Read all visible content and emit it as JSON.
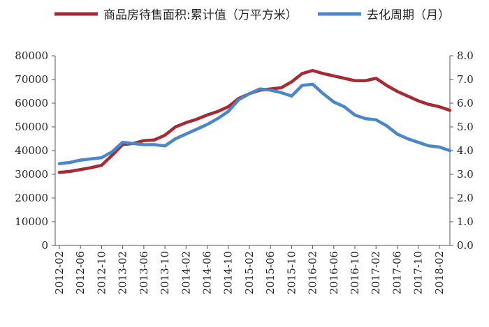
{
  "chart_data": {
    "type": "line",
    "title": "",
    "x": [
      "2012-02",
      "2012-04",
      "2012-06",
      "2012-08",
      "2012-10",
      "2012-12",
      "2013-02",
      "2013-04",
      "2013-06",
      "2013-08",
      "2013-10",
      "2013-12",
      "2014-02",
      "2014-04",
      "2014-06",
      "2014-08",
      "2014-10",
      "2014-12",
      "2015-02",
      "2015-04",
      "2015-06",
      "2015-08",
      "2015-10",
      "2015-12",
      "2016-02",
      "2016-04",
      "2016-06",
      "2016-08",
      "2016-10",
      "2016-12",
      "2017-02",
      "2017-04",
      "2017-06",
      "2017-08",
      "2017-10",
      "2017-12",
      "2018-02",
      "2018-04"
    ],
    "x_tick_labels": [
      "2012-02",
      "2012-06",
      "2012-10",
      "2013-02",
      "2013-06",
      "2013-10",
      "2014-02",
      "2014-06",
      "2014-10",
      "2015-02",
      "2015-06",
      "2015-10",
      "2016-02",
      "2016-06",
      "2016-10",
      "2017-02",
      "2017-06",
      "2017-10",
      "2018-02"
    ],
    "y_left": {
      "ylim": [
        0,
        80000
      ],
      "ticks": [
        "0",
        "10000",
        "20000",
        "30000",
        "40000",
        "50000",
        "60000",
        "70000",
        "80000"
      ]
    },
    "y_right": {
      "ylim": [
        0,
        8.0
      ],
      "ticks": [
        "0.0",
        "1.0",
        "2.0",
        "3.0",
        "4.0",
        "5.0",
        "6.0",
        "7.0",
        "8.0"
      ]
    },
    "series": [
      {
        "name": "商品房待售面积:累计值（万平方米）",
        "axis": "left",
        "color": "#a52a32",
        "values": [
          30800,
          31200,
          32000,
          32800,
          33800,
          38000,
          42600,
          43000,
          44200,
          44500,
          46500,
          50000,
          51800,
          53200,
          55000,
          56500,
          58500,
          62000,
          64000,
          65500,
          66000,
          66500,
          69000,
          72500,
          73800,
          72500,
          71500,
          70500,
          69500,
          69500,
          70500,
          67500,
          65000,
          63000,
          61000,
          59500,
          58500,
          57000
        ]
      },
      {
        "name": "去化周期（月）",
        "axis": "right",
        "color": "#4a86c8",
        "values": [
          3.45,
          3.5,
          3.6,
          3.65,
          3.7,
          3.95,
          4.35,
          4.3,
          4.25,
          4.25,
          4.2,
          4.5,
          4.7,
          4.9,
          5.1,
          5.35,
          5.65,
          6.15,
          6.4,
          6.6,
          6.55,
          6.45,
          6.3,
          6.75,
          6.8,
          6.4,
          6.05,
          5.85,
          5.5,
          5.35,
          5.3,
          5.05,
          4.7,
          4.5,
          4.35,
          4.2,
          4.15,
          4.0
        ]
      }
    ],
    "legend_placement": "top",
    "grid": false
  }
}
